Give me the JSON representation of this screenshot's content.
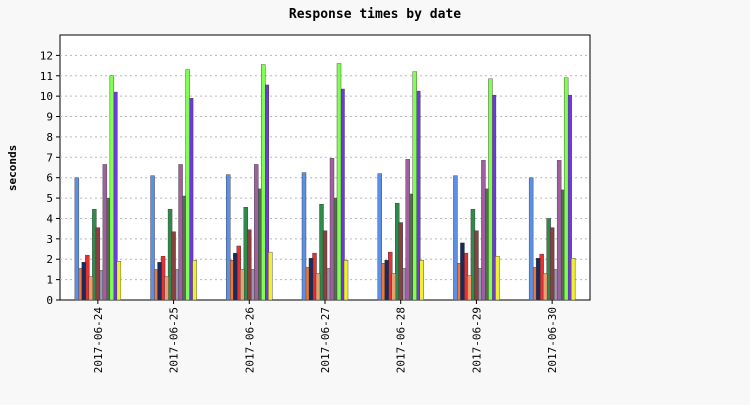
{
  "chart_data": {
    "type": "bar",
    "title": "Response times by date",
    "xlabel": "",
    "ylabel": "seconds",
    "ylim": [
      0,
      13
    ],
    "y_ticks": [
      0,
      1,
      2,
      3,
      4,
      5,
      6,
      7,
      8,
      9,
      10,
      11,
      12
    ],
    "grid": "horizontal dashed",
    "legend": "none",
    "categories": [
      "2017-06-24",
      "2017-06-25",
      "2017-06-26",
      "2017-06-27",
      "2017-06-28",
      "2017-06-29",
      "2017-06-30"
    ],
    "series": [
      {
        "color": "#5c8fe6",
        "values": [
          6.0,
          6.1,
          6.15,
          6.25,
          6.2,
          6.1,
          6.0
        ]
      },
      {
        "color": "#f07838",
        "values": [
          1.55,
          1.5,
          1.95,
          1.6,
          1.8,
          1.8,
          1.6
        ]
      },
      {
        "color": "#1a2a5a",
        "values": [
          1.85,
          1.85,
          2.3,
          2.05,
          1.95,
          2.8,
          2.05
        ]
      },
      {
        "color": "#e83030",
        "values": [
          2.2,
          2.15,
          2.65,
          2.3,
          2.35,
          2.3,
          2.25
        ]
      },
      {
        "color": "#e8a070",
        "values": [
          1.15,
          1.15,
          1.5,
          1.3,
          1.3,
          1.2,
          1.3
        ]
      },
      {
        "color": "#2e8b4a",
        "values": [
          4.45,
          4.45,
          4.55,
          4.7,
          4.75,
          4.45,
          4.0
        ]
      },
      {
        "color": "#884040",
        "values": [
          3.55,
          3.35,
          3.45,
          3.4,
          3.8,
          3.4,
          3.55
        ]
      },
      {
        "color": "#9a98b0",
        "values": [
          1.45,
          1.5,
          1.5,
          1.55,
          1.55,
          1.55,
          1.5
        ]
      },
      {
        "color": "#a060a0",
        "values": [
          6.65,
          6.65,
          6.65,
          6.95,
          6.9,
          6.85,
          6.85
        ]
      },
      {
        "color": "#507050",
        "values": [
          5.0,
          5.1,
          5.45,
          5.0,
          5.2,
          5.45,
          5.4
        ]
      },
      {
        "color": "#80ff50",
        "values": [
          11.0,
          11.3,
          11.55,
          11.6,
          11.2,
          10.85,
          10.9
        ]
      },
      {
        "color": "#7038e0",
        "values": [
          10.2,
          9.9,
          10.55,
          10.35,
          10.25,
          10.05,
          10.05
        ]
      },
      {
        "color": "#f0f030",
        "values": [
          1.9,
          1.95,
          2.35,
          1.95,
          1.95,
          2.15,
          2.05
        ]
      }
    ]
  }
}
